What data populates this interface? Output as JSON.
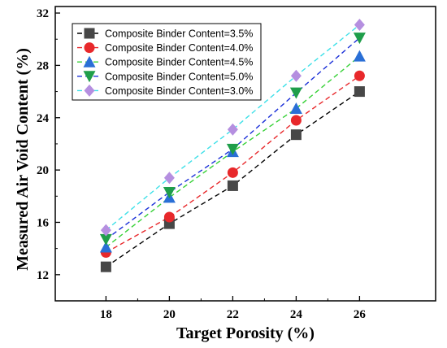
{
  "chart_data": {
    "type": "line",
    "xlabel": "Target Porosity (%)",
    "ylabel": "Measured Air Void Content (%)",
    "x": [
      18,
      20,
      22,
      24,
      26
    ],
    "xlim": [
      16.4,
      28.4
    ],
    "ylim": [
      10,
      32.5
    ],
    "xticks": [
      18,
      20,
      22,
      24,
      26
    ],
    "yticks": [
      12,
      16,
      20,
      24,
      28,
      32
    ],
    "grid": false,
    "legend_placement": "top-left",
    "series": [
      {
        "name": "Composite Binder Content=3.5%",
        "values": [
          12.6,
          15.9,
          18.8,
          22.7,
          26.0
        ],
        "color": "#474747",
        "marker": "square"
      },
      {
        "name": "Composite Binder Content=4.0%",
        "values": [
          13.7,
          16.4,
          19.8,
          23.8,
          27.2
        ],
        "color": "#e8282b",
        "marker": "circle"
      },
      {
        "name": "Composite Binder Content=4.5%",
        "values": [
          14.1,
          17.9,
          21.4,
          24.7,
          28.7
        ],
        "color": "#2a6fd6",
        "marker": "triangle-up"
      },
      {
        "name": "Composite Binder Content=5.0%",
        "values": [
          14.7,
          18.3,
          21.6,
          25.9,
          30.1
        ],
        "color": "#1f9e4a",
        "marker": "triangle-down"
      },
      {
        "name": "Composite Binder Content=3.0%",
        "values": [
          15.4,
          19.4,
          23.1,
          27.2,
          31.1
        ],
        "color": "#b58fe0",
        "marker": "diamond"
      }
    ],
    "legend_line_colors": [
      "#000000",
      "#e8282b",
      "#36d136",
      "#1a2fd8",
      "#3ee0e8"
    ],
    "line_style": "dashed"
  }
}
